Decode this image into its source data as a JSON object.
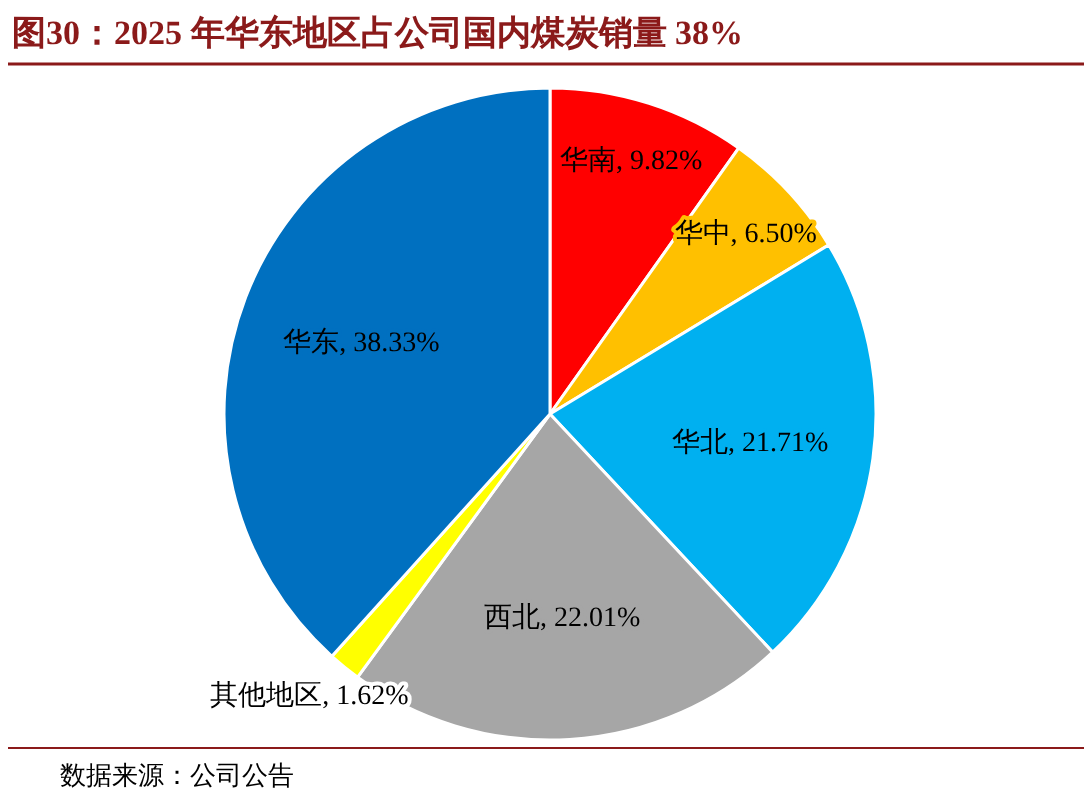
{
  "chart_data": {
    "type": "pie",
    "title": "图30：2025 年华东地区占公司国内煤炭销量 38%",
    "categories": [
      "华南",
      "华中",
      "华北",
      "西北",
      "其他地区",
      "华东"
    ],
    "values": [
      9.82,
      6.5,
      21.71,
      22.01,
      1.62,
      38.33
    ],
    "value_labels": [
      "9.82%",
      "6.50%",
      "21.71%",
      "22.01%",
      "1.62%",
      "38.33%"
    ],
    "colors": [
      "#ff0000",
      "#ffc000",
      "#00b0f0",
      "#a6a6a6",
      "#ffff00",
      "#0070c0"
    ],
    "annotations": [
      "数据来源：公司公告"
    ]
  }
}
